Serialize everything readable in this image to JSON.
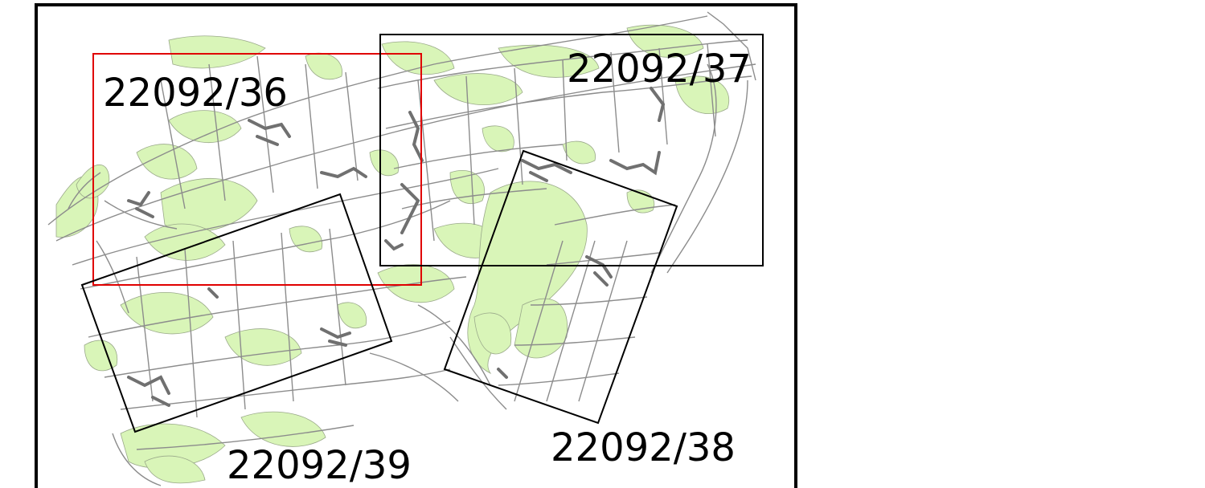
{
  "map": {
    "sheets": [
      {
        "label": "22092/36",
        "selected": true
      },
      {
        "label": "22092/37",
        "selected": false
      },
      {
        "label": "22092/38",
        "selected": false
      },
      {
        "label": "22092/39",
        "selected": false
      }
    ],
    "colors": {
      "background": "#ffffff",
      "frame": "#000000",
      "forest": "#d9f5b8",
      "parcel_lines": "#8c8c8c",
      "buildings": "#707070",
      "selected_sheet": "#e00000",
      "sheet_outline": "#000000"
    }
  }
}
